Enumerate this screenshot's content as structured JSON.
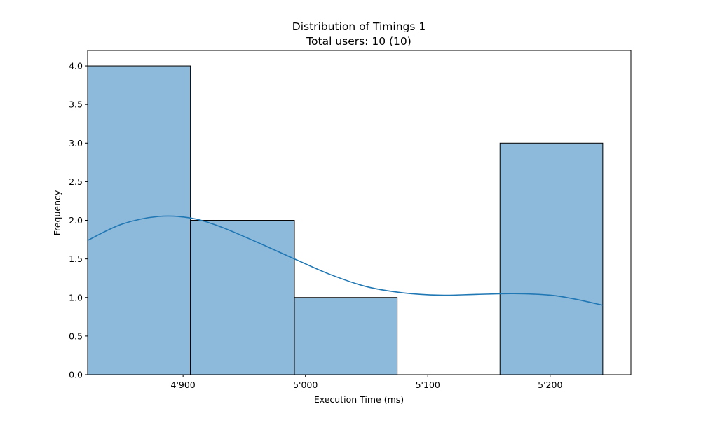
{
  "chart_data": {
    "type": "bar",
    "subtype": "histogram with kde",
    "title": "Distribution of Timings 1",
    "subtitle": "Total users: 10 (10)",
    "xlabel": "Execution Time (ms)",
    "ylabel": "Frequency",
    "xlim": [
      4822,
      5266
    ],
    "ylim": [
      0,
      4.2
    ],
    "x_ticks": [
      {
        "value": 4900,
        "label": "4'900"
      },
      {
        "value": 5000,
        "label": "5'000"
      },
      {
        "value": 5100,
        "label": "5'100"
      },
      {
        "value": 5200,
        "label": "5'200"
      }
    ],
    "y_ticks": [
      {
        "value": 0,
        "label": "0.0"
      },
      {
        "value": 0.5,
        "label": "0.5"
      },
      {
        "value": 1,
        "label": "1.0"
      },
      {
        "value": 1.5,
        "label": "1.5"
      },
      {
        "value": 2,
        "label": "2.0"
      },
      {
        "value": 2.5,
        "label": "2.5"
      },
      {
        "value": 3,
        "label": "3.0"
      },
      {
        "value": 3.5,
        "label": "3.5"
      },
      {
        "value": 4,
        "label": "4.0"
      }
    ],
    "bins": [
      {
        "start": 4822,
        "end": 4906,
        "count": 4
      },
      {
        "start": 4906,
        "end": 4991,
        "count": 2
      },
      {
        "start": 4991,
        "end": 5075,
        "count": 1
      },
      {
        "start": 5075,
        "end": 5159,
        "count": 0
      },
      {
        "start": 5159,
        "end": 5243,
        "count": 3
      }
    ],
    "kde": {
      "x": [
        4822,
        4850,
        4880,
        4906,
        4930,
        4960,
        4991,
        5020,
        5050,
        5080,
        5110,
        5140,
        5170,
        5200,
        5220,
        5243
      ],
      "y": [
        1.74,
        1.95,
        2.05,
        2.03,
        1.92,
        1.72,
        1.5,
        1.3,
        1.14,
        1.06,
        1.03,
        1.04,
        1.05,
        1.03,
        0.98,
        0.9
      ]
    },
    "legend": "none",
    "grid": false,
    "colors": {
      "bar_fill": "#8db9da",
      "bar_edge": "#000000",
      "kde_line": "#1f77b4"
    }
  }
}
